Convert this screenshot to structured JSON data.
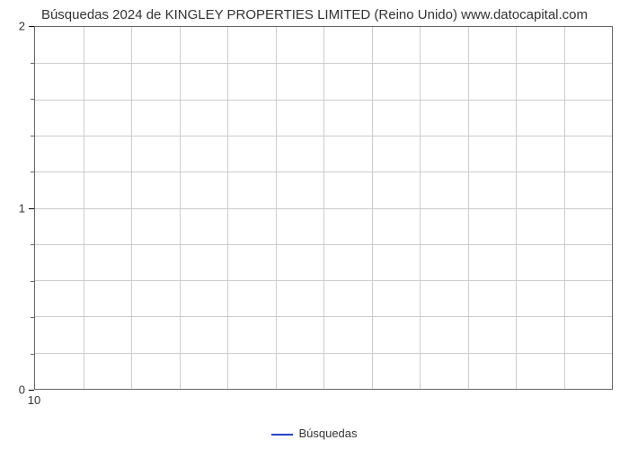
{
  "chart": {
    "type": "line",
    "title": "Búsquedas 2024 de KINGLEY PROPERTIES LIMITED (Reino Unido) www.datocapital.com",
    "title_fontsize": 15,
    "title_color": "#333333",
    "background_color": "#ffffff",
    "plot_border_color": "#666666",
    "grid_color": "#cccccc",
    "grid_on": true,
    "ylim": [
      0,
      2
    ],
    "y_major_ticks": [
      0,
      1,
      2
    ],
    "y_minor_tick_count_between": 4,
    "xlim": [
      10,
      22
    ],
    "x_major_ticks": [
      10
    ],
    "x_grid_line_count": 12,
    "axis_label_fontsize": 13,
    "axis_label_color": "#333333",
    "series": [
      {
        "name": "Búsquedas",
        "color": "#2244cc",
        "line_width": 2,
        "data_points": []
      }
    ],
    "legend": {
      "position": "bottom-center",
      "label": "Búsquedas",
      "fontsize": 13,
      "text_color": "#333333"
    }
  }
}
